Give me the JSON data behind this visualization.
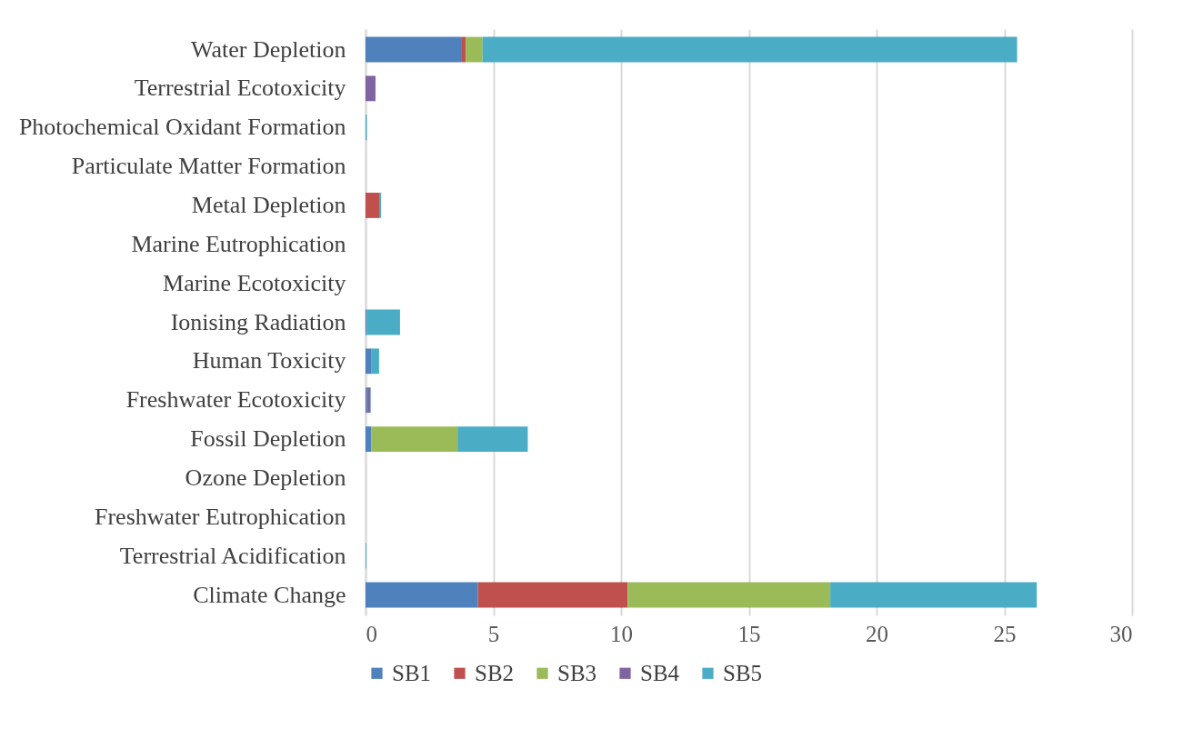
{
  "chart_data": {
    "type": "bar",
    "orientation": "horizontal",
    "stacked": true,
    "categories": [
      "Water Depletion",
      "Terrestrial Ecotoxicity",
      "Photochemical Oxidant Formation",
      "Particulate Matter Formation",
      "Metal Depletion",
      "Marine Eutrophication",
      "Marine Ecotoxicity",
      "Ionising Radiation",
      "Human Toxicity",
      "Freshwater Ecotoxicity",
      "Fossil Depletion",
      "Ozone Depletion",
      "Freshwater Eutrophication",
      "Terrestrial Acidification",
      "Climate Change"
    ],
    "series": [
      {
        "name": "SB1",
        "color": "#4f81bd",
        "values": [
          3.74,
          0,
          0,
          0,
          0,
          0,
          0,
          0.05,
          0.24,
          0.05,
          0.23,
          0,
          0,
          0,
          4.4
        ]
      },
      {
        "name": "SB2",
        "color": "#c0504d",
        "values": [
          0.18,
          0,
          0,
          0,
          0.56,
          0,
          0,
          0,
          0,
          0,
          0,
          0,
          0,
          0,
          5.86
        ]
      },
      {
        "name": "SB3",
        "color": "#9bbb59",
        "values": [
          0.66,
          0,
          0,
          0,
          0,
          0,
          0,
          0,
          0,
          0,
          3.37,
          0,
          0,
          0,
          7.93
        ]
      },
      {
        "name": "SB4",
        "color": "#8064a2",
        "values": [
          0,
          0.39,
          0,
          0,
          0,
          0,
          0,
          0,
          0,
          0.14,
          0,
          0,
          0,
          0,
          0
        ]
      },
      {
        "name": "SB5",
        "color": "#4bacc6",
        "values": [
          20.92,
          0,
          0.05,
          0,
          0.05,
          0,
          0,
          1.3,
          0.29,
          0.02,
          2.75,
          0,
          0,
          0.03,
          8.08
        ]
      }
    ],
    "xlim": [
      0,
      30
    ],
    "xticks": [
      0,
      5,
      10,
      15,
      20,
      25,
      30
    ],
    "grid": "x",
    "legend": "bottom"
  }
}
